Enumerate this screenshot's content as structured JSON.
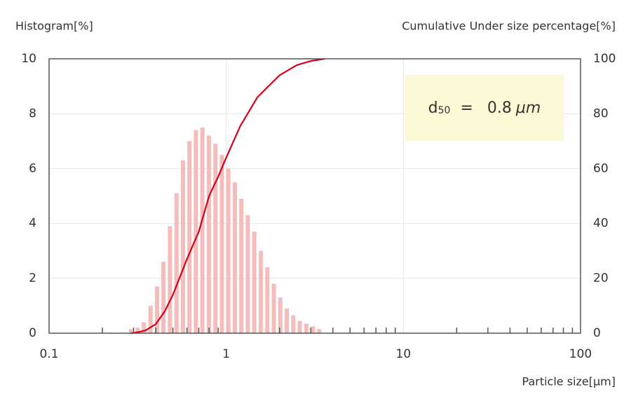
{
  "chart_data": {
    "type": "bar",
    "ylabel": "Histogram[%]",
    "y2label": "Cumulative Under size percentage[%]",
    "xlabel": "Particle size[μm]",
    "log_x": true,
    "grid": true,
    "xlim": [
      0.1,
      100
    ],
    "xticks": [
      0.1,
      1,
      10,
      100
    ],
    "xminorticks": [
      0.2,
      0.3,
      0.4,
      0.5,
      0.6,
      0.7,
      0.8,
      0.9,
      2,
      3,
      4,
      5,
      6,
      7,
      8,
      9,
      20,
      30,
      40,
      50,
      60,
      70,
      80,
      90
    ],
    "ylim": [
      0,
      10
    ],
    "yticks": [
      0,
      2,
      4,
      6,
      8,
      10
    ],
    "y2lim": [
      0,
      100
    ],
    "y2ticks": [
      0,
      20,
      40,
      60,
      80,
      100
    ],
    "series": [
      {
        "type": "bar",
        "color": "#f5bcbc",
        "x": [
          0.29,
          0.316,
          0.343,
          0.374,
          0.407,
          0.442,
          0.481,
          0.524,
          0.57,
          0.62,
          0.674,
          0.734,
          0.798,
          0.869,
          0.945,
          1.028,
          1.119,
          1.217,
          1.324,
          1.441,
          1.568,
          1.706,
          1.856,
          2.019,
          2.197,
          2.391,
          2.601,
          2.83,
          3.079,
          3.35
        ],
        "values": [
          0.15,
          0.2,
          0.4,
          1.0,
          1.7,
          2.6,
          3.9,
          5.1,
          6.3,
          7.0,
          7.4,
          7.5,
          7.2,
          6.9,
          6.5,
          6.0,
          5.5,
          4.9,
          4.3,
          3.7,
          3.0,
          2.4,
          1.8,
          1.3,
          0.9,
          0.65,
          0.45,
          0.35,
          0.25,
          0.15
        ]
      },
      {
        "type": "line",
        "axis": "y2",
        "color": "#d7001a",
        "x": [
          0.29,
          0.32,
          0.35,
          0.4,
          0.45,
          0.5,
          0.6,
          0.7,
          0.8,
          0.9,
          1.0,
          1.2,
          1.5,
          2.0,
          2.5,
          3.0,
          3.6
        ],
        "values": [
          0,
          0.4,
          1,
          3.3,
          8,
          14,
          27,
          37,
          50,
          57,
          64,
          75.5,
          86,
          94,
          97.7,
          99.2,
          100
        ]
      }
    ],
    "annotation": {
      "symbol": "d",
      "subscript": "50",
      "relation": "=",
      "value": 0.8,
      "unit": "μm"
    }
  }
}
